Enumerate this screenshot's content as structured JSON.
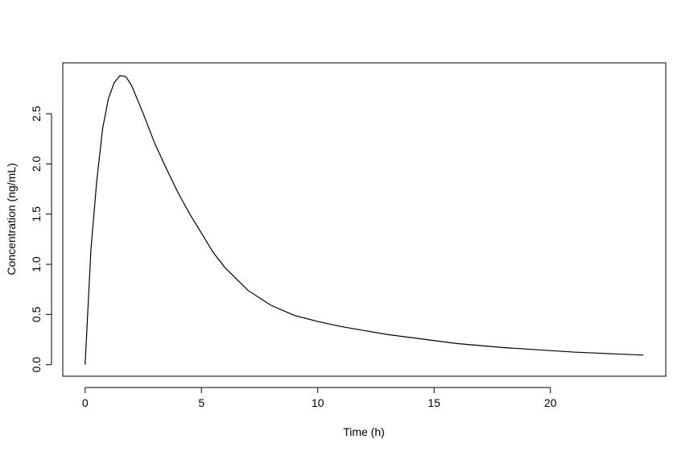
{
  "chart_data": {
    "type": "line",
    "x_label": "Time (h)",
    "y_label": "Concentration (ng/mL)",
    "x": [
      0,
      0.25,
      0.5,
      0.75,
      1,
      1.25,
      1.5,
      1.75,
      2,
      2.5,
      3,
      3.5,
      4,
      4.5,
      5,
      5.5,
      6,
      7,
      8,
      9,
      10,
      11,
      12,
      13,
      14,
      15,
      16,
      17,
      18,
      19,
      20,
      21,
      22,
      23,
      24
    ],
    "series": [
      {
        "color": "#000000",
        "values": [
          0,
          1.15,
          1.83,
          2.35,
          2.65,
          2.81,
          2.88,
          2.87,
          2.78,
          2.5,
          2.2,
          1.95,
          1.71,
          1.5,
          1.31,
          1.12,
          0.97,
          0.74,
          0.59,
          0.49,
          0.43,
          0.38,
          0.34,
          0.3,
          0.27,
          0.24,
          0.21,
          0.19,
          0.17,
          0.155,
          0.14,
          0.125,
          0.115,
          0.105,
          0.095
        ]
      }
    ],
    "xlim": [
      -0.96,
      24.96
    ],
    "ylim": [
      -0.1152,
      3.0072
    ],
    "xticks": [
      0,
      5,
      10,
      15,
      20
    ],
    "yticks": [
      {
        "value": 0,
        "label": "0.0"
      },
      0.5,
      {
        "value": 1,
        "label": "1.0"
      },
      1.5,
      {
        "value": 2,
        "label": "2.0"
      },
      2.5
    ]
  }
}
